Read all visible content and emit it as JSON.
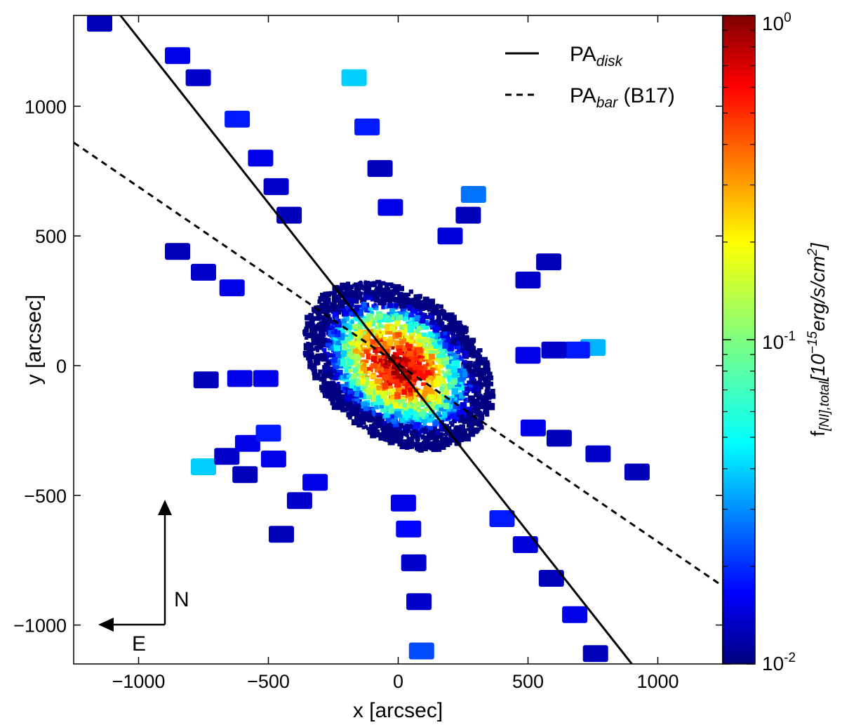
{
  "chart_data": {
    "type": "scatter",
    "title": "",
    "xlabel": "x [arcsec]",
    "ylabel": "y [arcsec]",
    "xlim": [
      -1250,
      1250
    ],
    "ylim": [
      -1150,
      1350
    ],
    "xticks": [
      -1000,
      -500,
      0,
      500,
      1000
    ],
    "xtick_labels": [
      "−1000",
      "−500",
      "0",
      "500",
      "1000"
    ],
    "yticks": [
      -1000,
      -500,
      0,
      500,
      1000
    ],
    "ytick_labels": [
      "−1000",
      "−500",
      "0",
      "500",
      "1000"
    ],
    "colorbar": {
      "label_main": "f",
      "label_sub": "[NI],total",
      "label_units": "[10",
      "label_exp": "−15",
      "label_rest": "erg/s/cm",
      "label_rest_exp": "2",
      "label_close": "]",
      "scale": "log",
      "range": [
        0.01,
        1
      ],
      "ticks": [
        {
          "value": 1,
          "base": "10",
          "exp": "0"
        },
        {
          "value": 0.1,
          "base": "10",
          "exp": "-1"
        },
        {
          "value": 0.01,
          "base": "10",
          "exp": "-2"
        }
      ],
      "colormap": "jet"
    },
    "lines": [
      {
        "name": "PA_disk",
        "legend_main": "PA",
        "legend_sub": "disk",
        "legend_suffix": "",
        "style": "solid",
        "points": [
          [
            -1070,
            1350
          ],
          [
            900,
            -1150
          ]
        ]
      },
      {
        "name": "PA_bar",
        "legend_main": "PA",
        "legend_sub": "bar",
        "legend_suffix": " (B17)",
        "style": "dashed",
        "points": [
          [
            -1250,
            860
          ],
          [
            1250,
            -850
          ]
        ]
      }
    ],
    "compass": {
      "north": "N",
      "east": "E"
    },
    "central_blob": {
      "center": [
        0,
        0
      ],
      "semi_major_arcsec": 400,
      "semi_minor_arcsec": 280,
      "peak_flux": 1.0
    },
    "spokes": [
      {
        "bins": [
          [
            -1150,
            1320,
            0.013
          ],
          [
            -850,
            1195,
            0.016
          ],
          [
            -770,
            1110,
            0.014
          ],
          [
            -620,
            950,
            0.02
          ],
          [
            -530,
            800,
            0.016
          ],
          [
            -470,
            690,
            0.014
          ],
          [
            -420,
            580,
            0.013
          ]
        ]
      },
      {
        "bins": [
          [
            -850,
            440,
            0.013
          ],
          [
            -750,
            360,
            0.014
          ],
          [
            -640,
            300,
            0.016
          ]
        ]
      },
      {
        "bins": [
          [
            -170,
            1110,
            0.045
          ],
          [
            -120,
            920,
            0.02
          ],
          [
            -70,
            760,
            0.013
          ],
          [
            -30,
            610,
            0.016
          ]
        ]
      },
      {
        "bins": [
          [
            290,
            660,
            0.03
          ],
          [
            270,
            580,
            0.013
          ],
          [
            200,
            500,
            0.015
          ]
        ]
      },
      {
        "bins": [
          [
            580,
            400,
            0.013
          ],
          [
            500,
            330,
            0.014
          ]
        ]
      },
      {
        "bins": [
          [
            750,
            70,
            0.04
          ],
          [
            690,
            60,
            0.02
          ],
          [
            600,
            60,
            0.014
          ],
          [
            500,
            40,
            0.016
          ]
        ]
      },
      {
        "bins": [
          [
            -740,
            -55,
            0.013
          ],
          [
            -610,
            -50,
            0.016
          ],
          [
            -510,
            -50,
            0.016
          ]
        ]
      },
      {
        "bins": [
          [
            -750,
            -390,
            0.045
          ],
          [
            -660,
            -350,
            0.014
          ],
          [
            -580,
            -300,
            0.016
          ],
          [
            -500,
            -260,
            0.02
          ]
        ]
      },
      {
        "bins": [
          [
            -590,
            -420,
            0.013
          ],
          [
            -480,
            -360,
            0.016
          ]
        ]
      },
      {
        "bins": [
          [
            -450,
            -650,
            0.013
          ],
          [
            -380,
            -520,
            0.014
          ],
          [
            -320,
            -450,
            0.016
          ]
        ]
      },
      {
        "bins": [
          [
            90,
            -1100,
            0.025
          ],
          [
            80,
            -910,
            0.014
          ],
          [
            60,
            -760,
            0.014
          ],
          [
            40,
            -630,
            0.018
          ],
          [
            20,
            -530,
            0.016
          ]
        ]
      },
      {
        "bins": [
          [
            760,
            -1110,
            0.013
          ],
          [
            680,
            -960,
            0.016
          ],
          [
            590,
            -820,
            0.013
          ],
          [
            490,
            -690,
            0.015
          ],
          [
            400,
            -590,
            0.02
          ]
        ]
      },
      {
        "bins": [
          [
            920,
            -410,
            0.013
          ],
          [
            770,
            -340,
            0.014
          ],
          [
            620,
            -280,
            0.013
          ],
          [
            520,
            -240,
            0.016
          ]
        ]
      }
    ]
  }
}
